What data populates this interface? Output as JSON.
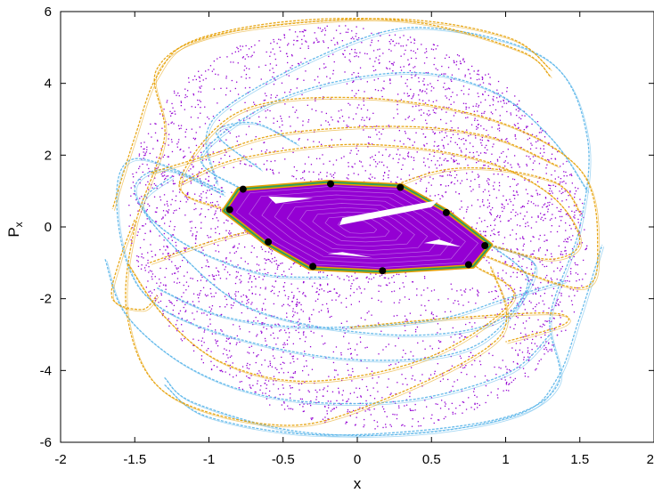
{
  "chart_data": {
    "type": "scatter",
    "title": "",
    "xlabel": "x",
    "ylabel_main": "P",
    "ylabel_sub": "x",
    "xlim": [
      -2,
      2
    ],
    "ylim": [
      -6,
      6
    ],
    "x_ticks": [
      -2,
      -1.5,
      -1,
      -0.5,
      0,
      0.5,
      1,
      1.5,
      2
    ],
    "y_ticks": [
      -6,
      -4,
      -2,
      0,
      2,
      4,
      6
    ],
    "x_tick_labels": [
      "-2",
      "-1.5",
      "-1",
      "-0.5",
      "0",
      "0.5",
      "1",
      "1.5",
      "2"
    ],
    "y_tick_labels": [
      "-6",
      "-4",
      "-2",
      "0",
      "2",
      "4",
      "6"
    ],
    "grid": false,
    "legend": "none",
    "colors": {
      "chaotic_sea": "#9400d3",
      "manifold_light": "#56b4e9",
      "manifold_orange": "#e69f00",
      "island_core": "#9400d3",
      "island_border": "#009e73",
      "periodic_orbit": "#000000",
      "island_hole": "#ffffff"
    },
    "periodic_orbit_points": [
      {
        "x": -0.77,
        "y": 1.05
      },
      {
        "x": -0.18,
        "y": 1.2
      },
      {
        "x": 0.29,
        "y": 1.1
      },
      {
        "x": 0.6,
        "y": 0.4
      },
      {
        "x": 0.86,
        "y": -0.52
      },
      {
        "x": 0.75,
        "y": -1.05
      },
      {
        "x": 0.17,
        "y": -1.22
      },
      {
        "x": -0.3,
        "y": -1.1
      },
      {
        "x": -0.6,
        "y": -0.42
      },
      {
        "x": -0.86,
        "y": 0.48
      }
    ],
    "island_boundary": [
      [
        -0.9,
        0.45
      ],
      [
        -0.8,
        1.05
      ],
      [
        -0.2,
        1.25
      ],
      [
        0.3,
        1.15
      ],
      [
        0.6,
        0.45
      ],
      [
        0.9,
        -0.5
      ],
      [
        0.78,
        -1.1
      ],
      [
        0.17,
        -1.25
      ],
      [
        -0.32,
        -1.15
      ],
      [
        -0.62,
        -0.45
      ]
    ],
    "island_holes": [
      [
        [
          -0.1,
          0.25
        ],
        [
          0.55,
          0.75
        ],
        [
          0.5,
          0.55
        ],
        [
          -0.12,
          0.05
        ]
      ],
      [
        [
          -0.6,
          0.85
        ],
        [
          -0.3,
          0.8
        ],
        [
          -0.55,
          0.65
        ]
      ],
      [
        [
          0.55,
          -0.35
        ],
        [
          0.7,
          -0.55
        ],
        [
          0.45,
          -0.45
        ]
      ],
      [
        [
          -0.2,
          -0.75
        ],
        [
          0.1,
          -0.85
        ],
        [
          -0.1,
          -0.7
        ]
      ]
    ],
    "manifold_curves": [
      {
        "color": "manifold_light",
        "points": [
          [
            -0.9,
            0.9
          ],
          [
            -1.3,
            1.6
          ],
          [
            -1.5,
            1.0
          ],
          [
            -1.25,
            -0.5
          ],
          [
            -0.7,
            -2.3
          ],
          [
            0.2,
            -3.0
          ],
          [
            0.9,
            -2.7
          ],
          [
            1.15,
            -1.5
          ],
          [
            0.9,
            -0.5
          ]
        ]
      },
      {
        "color": "manifold_light",
        "points": [
          [
            -0.95,
            1.2
          ],
          [
            -0.95,
            3.1
          ],
          [
            0.0,
            5.2
          ],
          [
            0.6,
            5.5
          ],
          [
            1.3,
            4.6
          ],
          [
            1.55,
            2.5
          ],
          [
            1.5,
            0.0
          ],
          [
            1.3,
            -2.5
          ],
          [
            1.35,
            -4.4
          ],
          [
            0.9,
            -5.4
          ],
          [
            -0.2,
            -5.8
          ],
          [
            -1.0,
            -5.3
          ],
          [
            -1.3,
            -4.4
          ]
        ]
      },
      {
        "color": "manifold_light",
        "points": [
          [
            -0.9,
            1.0
          ],
          [
            -1.5,
            1.9
          ],
          [
            -1.62,
            0.5
          ],
          [
            -1.45,
            -1.8
          ],
          [
            -0.9,
            -3.0
          ],
          [
            0.0,
            -3.7
          ],
          [
            0.8,
            -3.3
          ],
          [
            1.2,
            -1.2
          ],
          [
            0.9,
            -0.5
          ]
        ]
      },
      {
        "color": "manifold_light",
        "points": [
          [
            -0.8,
            1.1
          ],
          [
            -1.05,
            2.0
          ],
          [
            -0.5,
            3.6
          ],
          [
            0.3,
            4.3
          ],
          [
            0.9,
            3.8
          ],
          [
            1.3,
            2.5
          ],
          [
            1.55,
            1.0
          ]
        ]
      },
      {
        "color": "manifold_light",
        "points": [
          [
            -1.3,
            -4.2
          ],
          [
            -1.1,
            -4.9
          ],
          [
            -0.4,
            -5.7
          ],
          [
            0.4,
            -5.75
          ],
          [
            1.1,
            -5.2
          ],
          [
            1.35,
            -4.2
          ],
          [
            1.5,
            -2.5
          ],
          [
            1.65,
            -0.5
          ]
        ]
      },
      {
        "color": "manifold_light",
        "points": [
          [
            -1.35,
            -1.7
          ],
          [
            -0.9,
            -2.5
          ],
          [
            -0.3,
            -2.8
          ],
          [
            0.5,
            -2.6
          ],
          [
            1.0,
            -2.0
          ],
          [
            1.4,
            -1.5
          ]
        ]
      },
      {
        "color": "manifold_light",
        "points": [
          [
            -1.7,
            -0.9
          ],
          [
            -1.55,
            -2.5
          ],
          [
            -1.1,
            -4.0
          ],
          [
            -0.5,
            -4.8
          ],
          [
            0.3,
            -4.85
          ],
          [
            1.0,
            -4.1
          ],
          [
            1.3,
            -3.0
          ]
        ]
      },
      {
        "color": "manifold_light",
        "points": [
          [
            -0.65,
            1.6
          ],
          [
            -0.95,
            2.6
          ],
          [
            -0.7,
            2.9
          ],
          [
            -0.4,
            2.3
          ]
        ]
      },
      {
        "color": "manifold_light",
        "points": [
          [
            -1.25,
            1.4
          ],
          [
            -1.45,
            0.6
          ],
          [
            -1.15,
            -0.5
          ],
          [
            -0.65,
            -1.3
          ],
          [
            -0.2,
            -1.4
          ]
        ]
      },
      {
        "color": "manifold_orange",
        "points": [
          [
            0.9,
            -0.5
          ],
          [
            1.3,
            -0.9
          ],
          [
            1.5,
            -0.4
          ],
          [
            1.3,
            0.9
          ],
          [
            0.8,
            1.9
          ],
          [
            0.0,
            2.3
          ],
          [
            -0.8,
            1.9
          ],
          [
            -1.2,
            1.2
          ]
        ]
      },
      {
        "color": "manifold_orange",
        "points": [
          [
            0.8,
            -0.7
          ],
          [
            1.5,
            -1.7
          ],
          [
            1.62,
            -0.5
          ],
          [
            1.5,
            1.6
          ],
          [
            0.9,
            3.0
          ],
          [
            0.0,
            3.6
          ],
          [
            -0.8,
            3.2
          ],
          [
            -1.2,
            1.2
          ],
          [
            -0.9,
            0.5
          ]
        ]
      },
      {
        "color": "manifold_orange",
        "points": [
          [
            0.9,
            -1.1
          ],
          [
            0.95,
            -3.1
          ],
          [
            0.0,
            -5.1
          ],
          [
            -0.6,
            -5.5
          ],
          [
            -1.3,
            -4.6
          ],
          [
            -1.55,
            -2.5
          ],
          [
            -1.5,
            0.0
          ],
          [
            -1.3,
            2.5
          ],
          [
            -1.35,
            4.4
          ],
          [
            -0.9,
            5.4
          ],
          [
            0.2,
            5.8
          ],
          [
            1.0,
            5.3
          ],
          [
            1.3,
            4.4
          ]
        ]
      },
      {
        "color": "manifold_orange",
        "points": [
          [
            1.3,
            4.2
          ],
          [
            1.1,
            4.9
          ],
          [
            0.4,
            5.7
          ],
          [
            -0.4,
            5.75
          ],
          [
            -1.1,
            5.2
          ],
          [
            -1.35,
            4.2
          ],
          [
            -1.5,
            2.5
          ],
          [
            -1.65,
            0.5
          ]
        ]
      },
      {
        "color": "manifold_orange",
        "points": [
          [
            -1.5,
            0.2
          ],
          [
            -1.6,
            -0.9
          ],
          [
            -1.65,
            -2.0
          ],
          [
            -1.45,
            -2.3
          ],
          [
            -1.35,
            -1.9
          ]
        ]
      },
      {
        "color": "manifold_orange",
        "points": [
          [
            -1.4,
            -1.0
          ],
          [
            -0.9,
            -0.3
          ],
          [
            -0.2,
            0.4
          ],
          [
            0.6,
            1.6
          ],
          [
            1.3,
            1.3
          ],
          [
            1.5,
            0.4
          ]
        ]
      },
      {
        "color": "manifold_orange",
        "points": [
          [
            0.8,
            -1.1
          ],
          [
            1.05,
            -2.0
          ],
          [
            0.5,
            -3.6
          ],
          [
            -0.3,
            -4.3
          ],
          [
            -0.9,
            -3.8
          ],
          [
            -1.3,
            -2.5
          ],
          [
            -1.55,
            -1.0
          ]
        ]
      },
      {
        "color": "manifold_orange",
        "points": [
          [
            -0.05,
            -2.8
          ],
          [
            0.6,
            -2.55
          ],
          [
            1.3,
            -2.4
          ],
          [
            1.4,
            -2.7
          ],
          [
            1.0,
            -3.2
          ]
        ]
      },
      {
        "color": "manifold_orange",
        "points": [
          [
            1.35,
            1.7
          ],
          [
            0.9,
            2.5
          ],
          [
            0.3,
            2.8
          ],
          [
            -0.5,
            2.6
          ],
          [
            -1.0,
            2.0
          ],
          [
            -1.4,
            1.5
          ]
        ]
      }
    ],
    "chaotic_sea": {
      "points_drawn": 3800,
      "outer_boundary_rx": 1.55,
      "outer_boundary_ry": 5.6,
      "tilt": 0.35
    }
  }
}
